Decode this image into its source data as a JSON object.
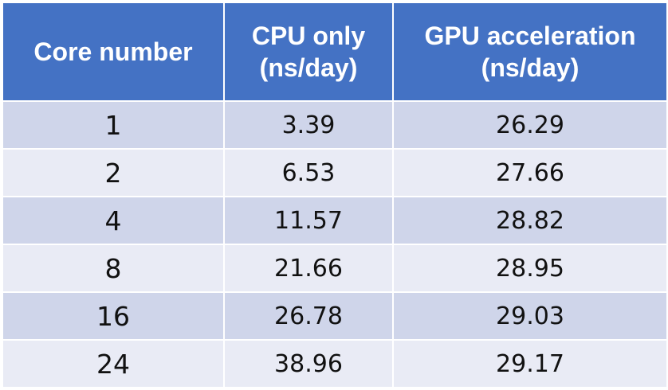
{
  "chart_data": {
    "type": "table",
    "columns": [
      [
        "Core number"
      ],
      [
        "CPU only",
        "(ns/day)"
      ],
      [
        "GPU acceleration",
        "(ns/day)"
      ]
    ],
    "rows": [
      [
        "1",
        "3.39",
        "26.29"
      ],
      [
        "2",
        "6.53",
        "27.66"
      ],
      [
        "4",
        "11.57",
        "28.82"
      ],
      [
        "8",
        "21.66",
        "28.95"
      ],
      [
        "16",
        "26.78",
        "29.03"
      ],
      [
        "24",
        "38.96",
        "29.17"
      ]
    ],
    "colors": {
      "header": "#4472c4",
      "row_odd": "#cfd5ea",
      "row_even": "#e9ebf5"
    }
  }
}
